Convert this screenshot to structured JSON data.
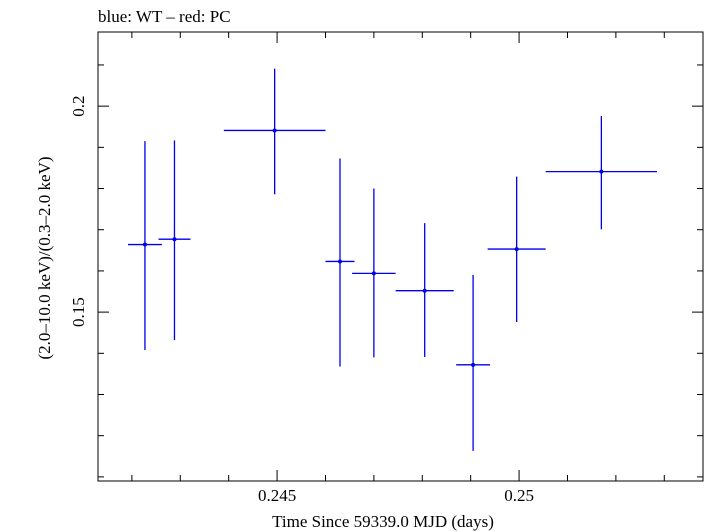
{
  "chart_data": {
    "type": "scatter",
    "title": "blue: WT – red: PC",
    "xlabel": "Time Since 59339.0 MJD (days)",
    "ylabel": "(2.0–10.0 keV)/(0.3–2.0 keV)",
    "xlim": [
      0.2413,
      0.2538
    ],
    "ylim": [
      0.109,
      0.218
    ],
    "x_major_ticks": [
      0.245,
      0.25
    ],
    "x_tick_labels": [
      "0.245",
      "0.25"
    ],
    "x_minor_ticks": [
      0.242,
      0.243,
      0.244,
      0.246,
      0.247,
      0.248,
      0.249,
      0.251,
      0.252,
      0.253
    ],
    "y_major_ticks": [
      0.15,
      0.2
    ],
    "y_tick_labels": [
      "0.15",
      "0.2"
    ],
    "y_minor_ticks": [
      0.11,
      0.12,
      0.13,
      0.14,
      0.16,
      0.17,
      0.18,
      0.19,
      0.21
    ],
    "series": [
      {
        "color": "#0000ee",
        "points": [
          {
            "x": 0.24227,
            "xerr": 0.00035,
            "y": 0.1664,
            "yerr_low": 0.0256,
            "yerr_high": 0.0251
          },
          {
            "x": 0.24288,
            "xerr": 0.00033,
            "y": 0.1677,
            "yerr_low": 0.0245,
            "yerr_high": 0.024
          },
          {
            "x": 0.24495,
            "xerr": 0.00105,
            "y": 0.1941,
            "yerr_low": 0.0155,
            "yerr_high": 0.015
          },
          {
            "x": 0.2463,
            "xerr": 0.0003,
            "y": 0.1623,
            "yerr_low": 0.0255,
            "yerr_high": 0.025
          },
          {
            "x": 0.247,
            "xerr": 0.00045,
            "y": 0.1594,
            "yerr_low": 0.0204,
            "yerr_high": 0.0206
          },
          {
            "x": 0.24805,
            "xerr": 0.0006,
            "y": 0.1552,
            "yerr_low": 0.0161,
            "yerr_high": 0.0164
          },
          {
            "x": 0.24905,
            "xerr": 0.00035,
            "y": 0.1372,
            "yerr_low": 0.0209,
            "yerr_high": 0.0218
          },
          {
            "x": 0.24995,
            "xerr": 0.0006,
            "y": 0.1653,
            "yerr_low": 0.0177,
            "yerr_high": 0.0176
          },
          {
            "x": 0.2517,
            "xerr": 0.00115,
            "y": 0.1841,
            "yerr_low": 0.014,
            "yerr_high": 0.0135
          }
        ]
      }
    ]
  }
}
